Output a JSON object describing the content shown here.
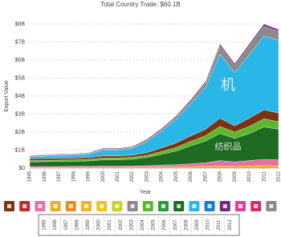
{
  "chart_data": {
    "type": "stacked_area",
    "title": "Total Country Trade: $60.1B",
    "xlabel": "Year",
    "ylabel": "Export Value",
    "x": [
      1995,
      1996,
      1997,
      1998,
      1999,
      2000,
      2001,
      2002,
      2003,
      2004,
      2005,
      2006,
      2007,
      2008,
      2009,
      2010,
      2011,
      2012
    ],
    "xlim": [
      1995,
      2012
    ],
    "xticks": [
      1995,
      1996,
      1997,
      1998,
      1999,
      2000,
      2001,
      2002,
      2003,
      2004,
      2005,
      2006,
      2007,
      2008,
      2009,
      2010,
      2011,
      2012
    ],
    "ylim": [
      0,
      8.4
    ],
    "yticks": [
      {
        "value": 0,
        "label": "$0"
      },
      {
        "value": 1,
        "label": "$1B"
      },
      {
        "value": 2,
        "label": "$2B"
      },
      {
        "value": 3,
        "label": "$3B"
      },
      {
        "value": 4,
        "label": "$4B"
      },
      {
        "value": 5,
        "label": "$5B"
      },
      {
        "value": 6,
        "label": "$6B"
      },
      {
        "value": 7,
        "label": "$7B"
      },
      {
        "value": 8,
        "label": "$8B"
      }
    ],
    "grid": true,
    "series": [
      {
        "color": "#e8b21c",
        "values": [
          0.04,
          0.04,
          0.04,
          0.05,
          0.05,
          0.05,
          0.05,
          0.05,
          0.06,
          0.07,
          0.08,
          0.09,
          0.1,
          0.12,
          0.1,
          0.12,
          0.14,
          0.13
        ]
      },
      {
        "color": "#e86fa5",
        "values": [
          0.05,
          0.05,
          0.05,
          0.05,
          0.05,
          0.06,
          0.06,
          0.07,
          0.08,
          0.1,
          0.12,
          0.15,
          0.2,
          0.3,
          0.25,
          0.3,
          0.35,
          0.33
        ]
      },
      {
        "name": "纺织品",
        "color": "#1f6b24",
        "values": [
          0.25,
          0.27,
          0.28,
          0.28,
          0.3,
          0.35,
          0.35,
          0.38,
          0.45,
          0.6,
          0.75,
          1.0,
          1.2,
          1.5,
          1.3,
          1.5,
          1.8,
          1.7
        ]
      },
      {
        "color": "#5cb82a",
        "values": [
          0.08,
          0.08,
          0.08,
          0.08,
          0.09,
          0.1,
          0.1,
          0.1,
          0.12,
          0.15,
          0.2,
          0.25,
          0.3,
          0.4,
          0.35,
          0.4,
          0.45,
          0.42
        ]
      },
      {
        "color": "#7a3412",
        "values": [
          0.1,
          0.1,
          0.1,
          0.1,
          0.1,
          0.12,
          0.12,
          0.12,
          0.15,
          0.2,
          0.25,
          0.3,
          0.35,
          0.45,
          0.35,
          0.45,
          0.5,
          0.48
        ]
      },
      {
        "name": "机",
        "color": "#2bb6e8",
        "values": [
          0.1,
          0.13,
          0.15,
          0.16,
          0.18,
          0.32,
          0.32,
          0.37,
          0.61,
          0.93,
          1.32,
          1.79,
          2.32,
          3.58,
          2.95,
          3.53,
          4.09,
          4.04
        ]
      },
      {
        "color": "#8a8a8a",
        "values": [
          0.05,
          0.05,
          0.05,
          0.05,
          0.05,
          0.06,
          0.06,
          0.07,
          0.08,
          0.1,
          0.12,
          0.15,
          0.25,
          0.45,
          0.4,
          0.5,
          0.55,
          0.5
        ]
      },
      {
        "color": "#6f2a7d",
        "values": [
          0.03,
          0.03,
          0.03,
          0.03,
          0.03,
          0.04,
          0.04,
          0.04,
          0.05,
          0.05,
          0.06,
          0.07,
          0.08,
          0.1,
          0.1,
          0.1,
          0.12,
          0.1
        ]
      }
    ],
    "timeline": [
      "1995",
      "1996",
      "1997",
      "1998",
      "1999",
      "2000",
      "2001",
      "2002",
      "2003",
      "2004",
      "2005",
      "2006",
      "2007",
      "2008",
      "2009",
      "2010",
      "2011",
      "2012"
    ]
  }
}
